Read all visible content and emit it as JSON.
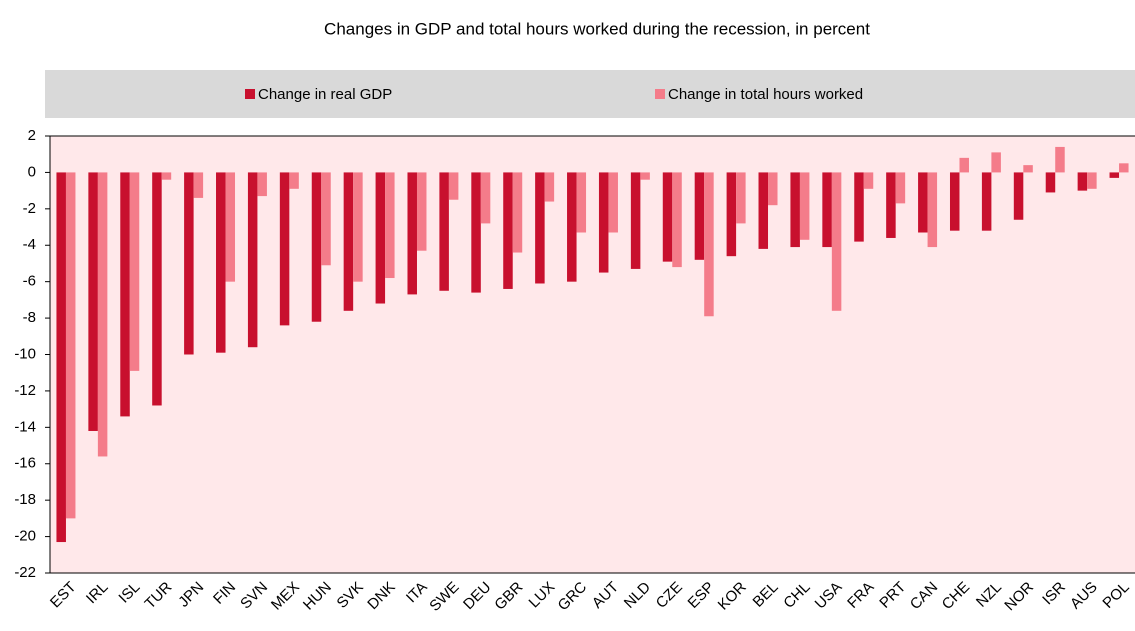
{
  "chart_data": {
    "type": "bar",
    "title": "Changes in GDP and total hours worked during the recession, in percent",
    "categories": [
      "EST",
      "IRL",
      "ISL",
      "TUR",
      "JPN",
      "FIN",
      "SVN",
      "MEX",
      "HUN",
      "SVK",
      "DNK",
      "ITA",
      "SWE",
      "DEU",
      "GBR",
      "LUX",
      "GRC",
      "AUT",
      "NLD",
      "CZE",
      "ESP",
      "KOR",
      "BEL",
      "CHL",
      "USA",
      "FRA",
      "PRT",
      "CAN",
      "CHE",
      "NZL",
      "NOR",
      "ISR",
      "AUS",
      "POL"
    ],
    "series": [
      {
        "name": "Change in real GDP",
        "color": "#c8102e",
        "values": [
          -20.3,
          -14.2,
          -13.4,
          -12.8,
          -10.0,
          -9.9,
          -9.6,
          -8.4,
          -8.2,
          -7.6,
          -7.2,
          -6.7,
          -6.5,
          -6.6,
          -6.4,
          -6.1,
          -6.0,
          -5.5,
          -5.3,
          -4.9,
          -4.8,
          -4.6,
          -4.2,
          -4.1,
          -4.1,
          -3.8,
          -3.6,
          -3.3,
          -3.2,
          -3.2,
          -2.6,
          -1.1,
          -1.0,
          -0.3
        ]
      },
      {
        "name": "Change in total hours worked",
        "color": "#f47c8a",
        "values": [
          -19.0,
          -15.6,
          -10.9,
          -0.4,
          -1.4,
          -6.0,
          -1.3,
          -0.9,
          -5.1,
          -6.0,
          -5.8,
          -4.3,
          -1.5,
          -2.8,
          -4.4,
          -1.6,
          -3.3,
          -3.3,
          -0.4,
          -5.2,
          -7.9,
          -2.8,
          -1.8,
          -3.7,
          -7.6,
          -0.9,
          -1.7,
          -4.1,
          0.8,
          1.1,
          0.4,
          1.4,
          -0.9,
          0.5
        ]
      }
    ],
    "ylim": [
      -22,
      2
    ],
    "yticks": [
      -22,
      -20,
      -18,
      -16,
      -14,
      -12,
      -10,
      -8,
      -6,
      -4,
      -2,
      0,
      2
    ]
  }
}
